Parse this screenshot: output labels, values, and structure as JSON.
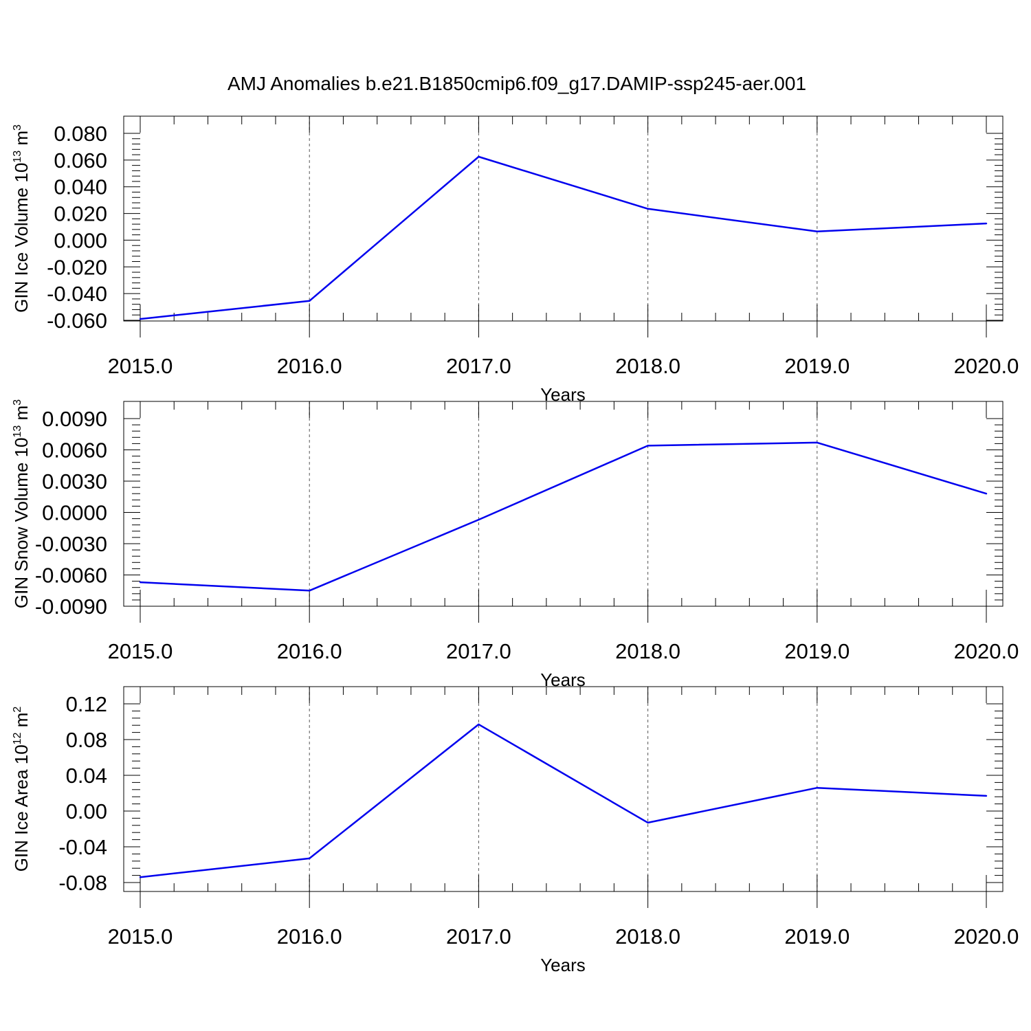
{
  "title": "AMJ Anomalies b.e21.B1850cmip6.f09_g17.DAMIP-ssp245-aer.001",
  "line_color": "#0000ee",
  "chart_data": [
    {
      "type": "line",
      "ylabel": "GIN Ice Volume 10",
      "ylabel_sup": "13",
      "ylabel_unit": "m",
      "ylabel_unit_sup": "3",
      "xlabel": "Years",
      "xlim": [
        2015,
        2020
      ],
      "ylim": [
        -0.06,
        0.08
      ],
      "y_ticks": [
        "0.080",
        "0.060",
        "0.040",
        "0.020",
        "0.000",
        "-0.020",
        "-0.040",
        "-0.060"
      ],
      "y_tick_values": [
        0.08,
        0.06,
        0.04,
        0.02,
        0.0,
        -0.02,
        -0.04,
        -0.06
      ],
      "x_ticks": [
        "2015.0",
        "2016.0",
        "2017.0",
        "2018.0",
        "2019.0",
        "2020.0"
      ],
      "x_tick_values": [
        2015,
        2016,
        2017,
        2018,
        2019,
        2020
      ],
      "grid": "vertical dashed",
      "series": [
        {
          "x": [
            2015,
            2016,
            2017,
            2018,
            2019,
            2020
          ],
          "values": [
            -0.059,
            -0.0455,
            0.0625,
            0.0235,
            0.0065,
            0.0125
          ]
        }
      ]
    },
    {
      "type": "line",
      "ylabel": "GIN Snow Volume 10",
      "ylabel_sup": "13",
      "ylabel_unit": "m",
      "ylabel_unit_sup": "3",
      "xlabel": "Years",
      "xlim": [
        2015,
        2020
      ],
      "ylim": [
        -0.009,
        0.009
      ],
      "y_ticks": [
        "0.0090",
        "0.0060",
        "0.0030",
        "0.0000",
        "-0.0030",
        "-0.0060",
        "-0.0090"
      ],
      "y_tick_values": [
        0.009,
        0.006,
        0.003,
        0.0,
        -0.003,
        -0.006,
        -0.009
      ],
      "x_ticks": [
        "2015.0",
        "2016.0",
        "2017.0",
        "2018.0",
        "2019.0",
        "2020.0"
      ],
      "x_tick_values": [
        2015,
        2016,
        2017,
        2018,
        2019,
        2020
      ],
      "grid": "vertical dashed",
      "series": [
        {
          "x": [
            2015,
            2016,
            2017,
            2018,
            2019,
            2020
          ],
          "values": [
            -0.0067,
            -0.0075,
            -0.0007,
            0.0064,
            0.0067,
            0.0018
          ]
        }
      ]
    },
    {
      "type": "line",
      "ylabel": "GIN Ice Area 10",
      "ylabel_sup": "12",
      "ylabel_unit": "m",
      "ylabel_unit_sup": "2",
      "xlabel": "Years",
      "xlim": [
        2015,
        2020
      ],
      "ylim": [
        -0.09,
        0.12
      ],
      "y_ticks": [
        "0.12",
        "0.08",
        "0.04",
        "0.00",
        "-0.04",
        "-0.08"
      ],
      "y_tick_values": [
        0.12,
        0.08,
        0.04,
        0.0,
        -0.04,
        -0.08
      ],
      "x_ticks": [
        "2015.0",
        "2016.0",
        "2017.0",
        "2018.0",
        "2019.0",
        "2020.0"
      ],
      "x_tick_values": [
        2015,
        2016,
        2017,
        2018,
        2019,
        2020
      ],
      "grid": "vertical dashed",
      "series": [
        {
          "x": [
            2015,
            2016,
            2017,
            2018,
            2019,
            2020
          ],
          "values": [
            -0.074,
            -0.053,
            0.097,
            -0.013,
            0.026,
            0.017
          ]
        }
      ]
    }
  ]
}
